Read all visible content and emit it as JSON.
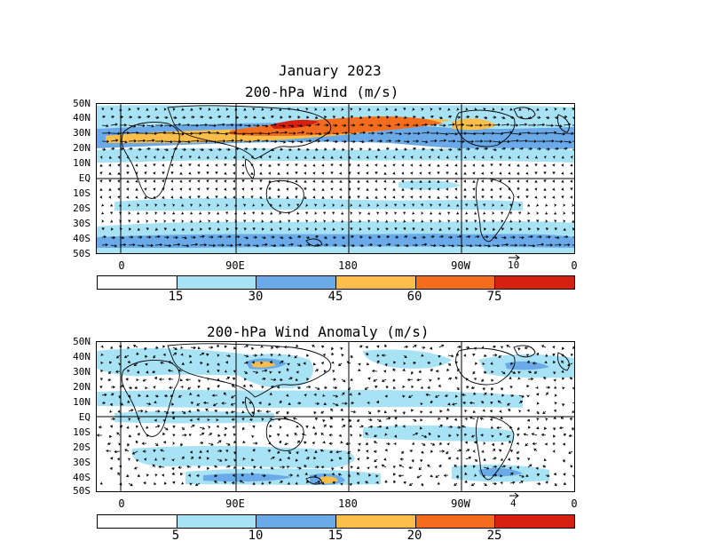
{
  "header": {
    "title": "January 2023"
  },
  "panels": [
    {
      "title": "200-hPa Wind (m/s)",
      "lat_labels": [
        "50N",
        "40N",
        "30N",
        "20N",
        "10N",
        "EQ",
        "10S",
        "20S",
        "30S",
        "40S",
        "50S"
      ],
      "lon_labels": [
        "0",
        "90E",
        "180",
        "90W",
        "0"
      ],
      "ref_vector_label": "10",
      "colorbar": {
        "levels": [
          "15",
          "30",
          "45",
          "60",
          "75"
        ],
        "colors": [
          "#ffffff",
          "#a8e2f5",
          "#6aaae8",
          "#fbbe4b",
          "#f46c1e",
          "#d82010"
        ]
      }
    },
    {
      "title": "200-hPa Wind Anomaly (m/s)",
      "lat_labels": [
        "50N",
        "40N",
        "30N",
        "20N",
        "10N",
        "EQ",
        "10S",
        "20S",
        "30S",
        "40S",
        "50S"
      ],
      "lon_labels": [
        "0",
        "90E",
        "180",
        "90W",
        "0"
      ],
      "ref_vector_label": "4",
      "colorbar": {
        "levels": [
          "5",
          "10",
          "15",
          "20",
          "25"
        ],
        "colors": [
          "#ffffff",
          "#a8e2f5",
          "#6aaae8",
          "#fbbe4b",
          "#f46c1e",
          "#d82010"
        ]
      }
    }
  ]
}
